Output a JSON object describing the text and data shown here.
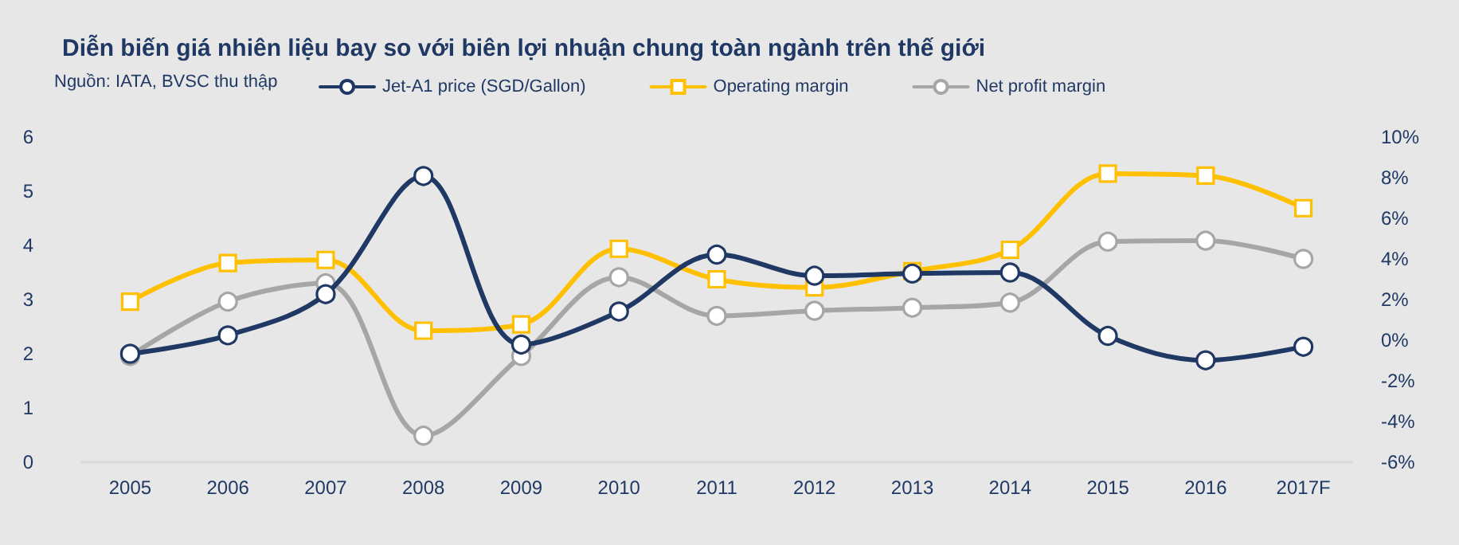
{
  "chart_data": {
    "type": "line",
    "title": "Diễn biến giá nhiên liệu bay so với biên lợi nhuận chung toàn ngành trên thế giới",
    "annotations": [
      "Nguồn: IATA, BVSC thu thập"
    ],
    "categories": [
      "2005",
      "2006",
      "2007",
      "2008",
      "2009",
      "2010",
      "2011",
      "2012",
      "2013",
      "2014",
      "2015",
      "2016",
      "2017F"
    ],
    "series": [
      {
        "name": "Jet-A1 price (SGD/Gallon)",
        "color": "#1f3864",
        "marker": "circle",
        "values": [
          2.0,
          2.34,
          3.1,
          5.28,
          2.17,
          2.78,
          3.83,
          3.44,
          3.48,
          3.5,
          2.33,
          1.88,
          2.13
        ]
      },
      {
        "name": "Operating margin",
        "color": "#ffc000",
        "marker": "square",
        "axis": "y2",
        "values": [
          1.9,
          3.8,
          3.95,
          0.47,
          0.78,
          4.5,
          3.0,
          2.6,
          3.4,
          4.45,
          8.2,
          8.1,
          6.5
        ]
      },
      {
        "name": "Net profit margin",
        "color": "#a6a6a6",
        "marker": "circle",
        "axis": "y2",
        "values": [
          -0.78,
          1.9,
          2.8,
          -4.7,
          -0.78,
          3.1,
          1.2,
          1.45,
          1.6,
          1.85,
          4.85,
          4.9,
          4.0
        ]
      }
    ],
    "ylim": [
      0,
      6
    ],
    "yticks": [
      0,
      1,
      2,
      3,
      4,
      5,
      6
    ],
    "y2lim": [
      -6,
      10
    ],
    "y2ticks": [
      {
        "value": -6,
        "label": "-6%"
      },
      {
        "value": -4,
        "label": "-4%"
      },
      {
        "value": -2,
        "label": "-2%"
      },
      {
        "value": 0,
        "label": "0%"
      },
      {
        "value": 2,
        "label": "2%"
      },
      {
        "value": 4,
        "label": "4%"
      },
      {
        "value": 6,
        "label": "6%"
      },
      {
        "value": 8,
        "label": "8%"
      },
      {
        "value": 10,
        "label": "10%"
      }
    ],
    "legend": "top",
    "grid": false,
    "line_style": "solid"
  }
}
